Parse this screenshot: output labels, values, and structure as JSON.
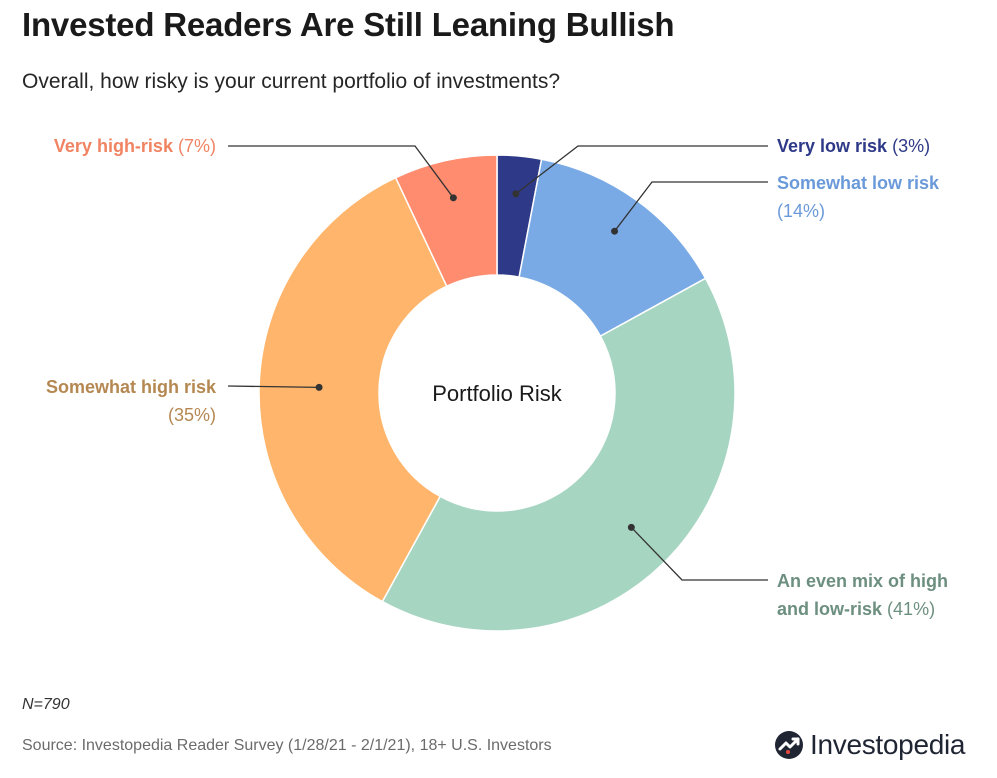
{
  "title": "Invested Readers Are Still Leaning Bullish",
  "subtitle": "Overall, how risky is your current portfolio of investments?",
  "note": "N=790",
  "source": "Source: Investopedia Reader Survey (1/28/21 - 2/1/21), 18+ U.S. Investors",
  "brand": "Investopedia",
  "chart_data": {
    "type": "pie",
    "donut": true,
    "center_label": "Portfolio Risk",
    "slices": [
      {
        "name": "Very low risk",
        "value": 3,
        "pct_label": "(3%)",
        "color": "#2e3a87",
        "label_color": "#2e3a87"
      },
      {
        "name": "Somewhat low risk",
        "value": 14,
        "pct_label": "(14%)",
        "color": "#7aaae6",
        "label_color": "#6a9ad9"
      },
      {
        "name": "An even mix of high and low-risk",
        "name_line1": "An even mix of high",
        "name_line2": "and low-risk",
        "value": 41,
        "pct_label": "(41%)",
        "color": "#a6d5c1",
        "label_color": "#6d8f7f"
      },
      {
        "name": "Somewhat high risk",
        "value": 35,
        "pct_label": "(35%)",
        "color": "#ffb56b",
        "label_color": "#b58852"
      },
      {
        "name": "Very high-risk",
        "value": 7,
        "pct_label": "(7%)",
        "color": "#ff8c6e",
        "label_color": "#f08462"
      }
    ]
  }
}
